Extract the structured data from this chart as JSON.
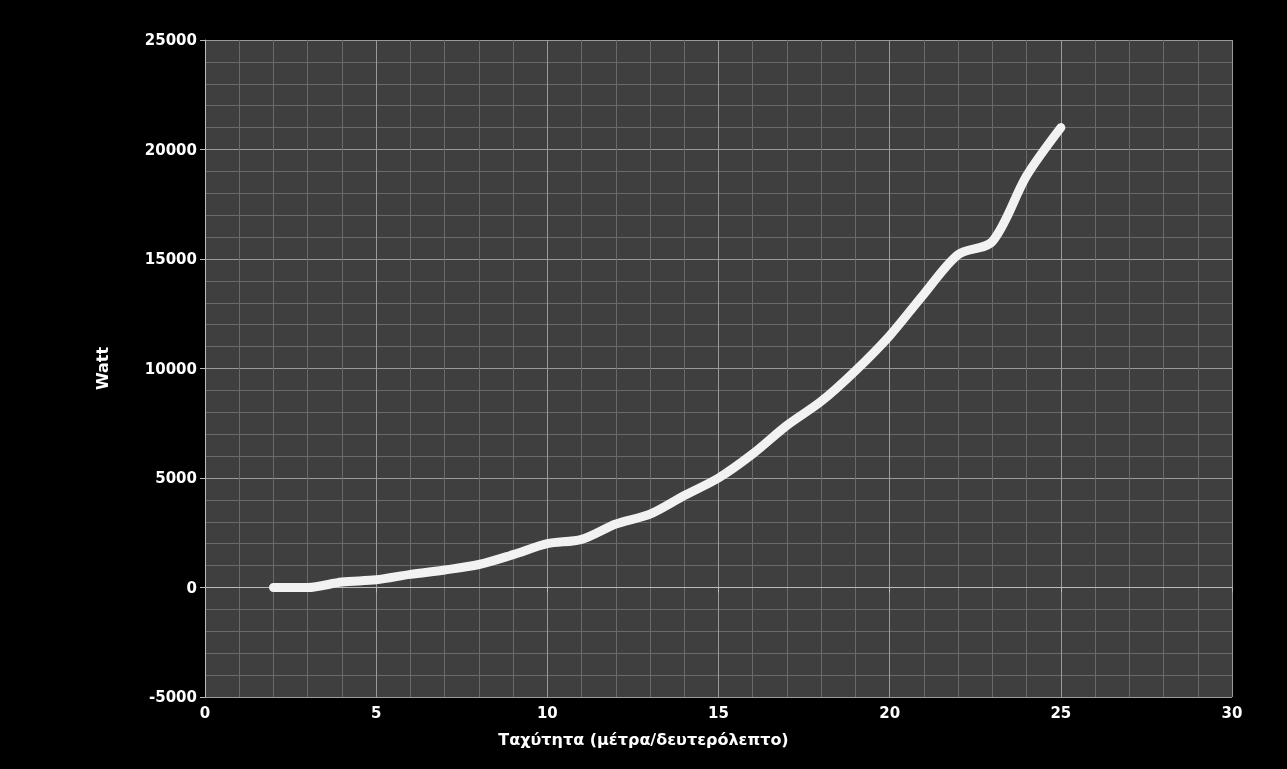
{
  "chart_data": {
    "type": "line",
    "xlabel": "Ταχύτητα (μέτρα/δευτερόλεπτο)",
    "ylabel": "Watt",
    "x": [
      2,
      3,
      4,
      5,
      6,
      7,
      8,
      9,
      10,
      11,
      12,
      13,
      14,
      15,
      16,
      17,
      18,
      19,
      20,
      21,
      22,
      23,
      24,
      25
    ],
    "series": [
      {
        "color": "#f2f2f2",
        "values": [
          0,
          0,
          250,
          350,
          600,
          800,
          1050,
          1500,
          2000,
          2200,
          2900,
          3350,
          4200,
          5000,
          6100,
          7400,
          8500,
          9900,
          11500,
          13400,
          15200,
          15800,
          18800,
          21000
        ]
      }
    ],
    "xlim": [
      0,
      30
    ],
    "xticks": [
      0,
      5,
      10,
      15,
      20,
      25,
      30
    ],
    "ylim": [
      -5000,
      25000
    ],
    "yticks": [
      -5000,
      0,
      5000,
      10000,
      15000,
      20000,
      25000
    ],
    "grid": true,
    "line_style": "solid"
  }
}
